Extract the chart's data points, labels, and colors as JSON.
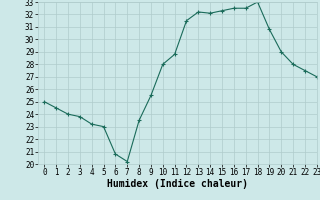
{
  "x": [
    0,
    1,
    2,
    3,
    4,
    5,
    6,
    7,
    8,
    9,
    10,
    11,
    12,
    13,
    14,
    15,
    16,
    17,
    18,
    19,
    20,
    21,
    22,
    23
  ],
  "y": [
    25,
    24.5,
    24,
    23.8,
    23.2,
    23,
    20.8,
    20.2,
    23.5,
    25.5,
    28,
    28.8,
    31.5,
    32.2,
    32.1,
    32.3,
    32.5,
    32.5,
    33,
    30.8,
    29,
    28,
    27.5,
    27
  ],
  "line_color": "#1a6b5a",
  "marker": "+",
  "marker_size": 3,
  "marker_lw": 0.8,
  "line_width": 0.8,
  "bg_color": "#cde8e8",
  "grid_color": "#b0cccc",
  "xlabel": "Humidex (Indice chaleur)",
  "xlabel_fontsize": 7,
  "tick_fontsize": 5.5,
  "ylim": [
    20,
    33
  ],
  "xlim": [
    -0.5,
    23
  ],
  "yticks": [
    20,
    21,
    22,
    23,
    24,
    25,
    26,
    27,
    28,
    29,
    30,
    31,
    32,
    33
  ],
  "xticks": [
    0,
    1,
    2,
    3,
    4,
    5,
    6,
    7,
    8,
    9,
    10,
    11,
    12,
    13,
    14,
    15,
    16,
    17,
    18,
    19,
    20,
    21,
    22,
    23
  ]
}
